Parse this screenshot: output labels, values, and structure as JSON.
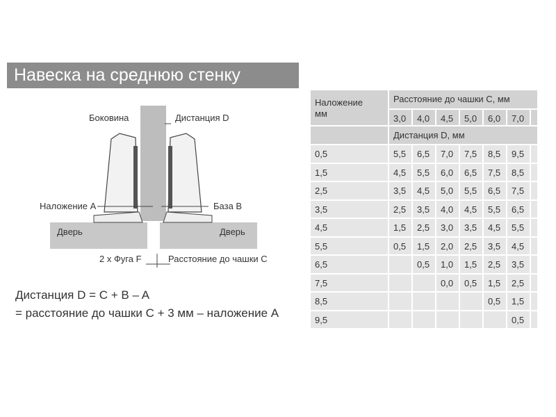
{
  "title": "Навеска на среднюю стенку",
  "diagram": {
    "side": "Боковина",
    "distance": "Дистанция D",
    "overlay": "Наложение A",
    "base": "База B",
    "door_left": "Дверь",
    "door_right": "Дверь",
    "gap": "2 x Фуга F",
    "cup": "Расстояние до чашки C"
  },
  "formula": [
    "Дистанция D = C + B – A",
    "= расстояние до чашки C + 3 мм – наложение A"
  ],
  "table": {
    "corner": [
      "Наложение",
      "мм"
    ],
    "group_header": "Расстояние до чашки C, мм",
    "columns": [
      "3,0",
      "4,0",
      "4,5",
      "5,0",
      "6,0",
      "7,0"
    ],
    "sub_header": "Дистанция D, мм",
    "rows": [
      [
        "0,5",
        "5,5",
        "6,5",
        "7,0",
        "7,5",
        "8,5",
        "9,5"
      ],
      [
        "1,5",
        "4,5",
        "5,5",
        "6,0",
        "6,5",
        "7,5",
        "8,5"
      ],
      [
        "2,5",
        "3,5",
        "4,5",
        "5,0",
        "5,5",
        "6,5",
        "7,5"
      ],
      [
        "3,5",
        "2,5",
        "3,5",
        "4,0",
        "4,5",
        "5,5",
        "6,5"
      ],
      [
        "4,5",
        "1,5",
        "2,5",
        "3,0",
        "3,5",
        "4,5",
        "5,5"
      ],
      [
        "5,5",
        "0,5",
        "1,5",
        "2,0",
        "2,5",
        "3,5",
        "4,5"
      ],
      [
        "6,5",
        null,
        "0,5",
        "1,0",
        "1,5",
        "2,5",
        "3,5"
      ],
      [
        "7,5",
        null,
        null,
        "0,0",
        "0,5",
        "1,5",
        "2,5"
      ],
      [
        "8,5",
        null,
        null,
        null,
        null,
        "0,5",
        "1,5"
      ],
      [
        "9,5",
        null,
        null,
        null,
        null,
        null,
        "0,5"
      ]
    ]
  }
}
